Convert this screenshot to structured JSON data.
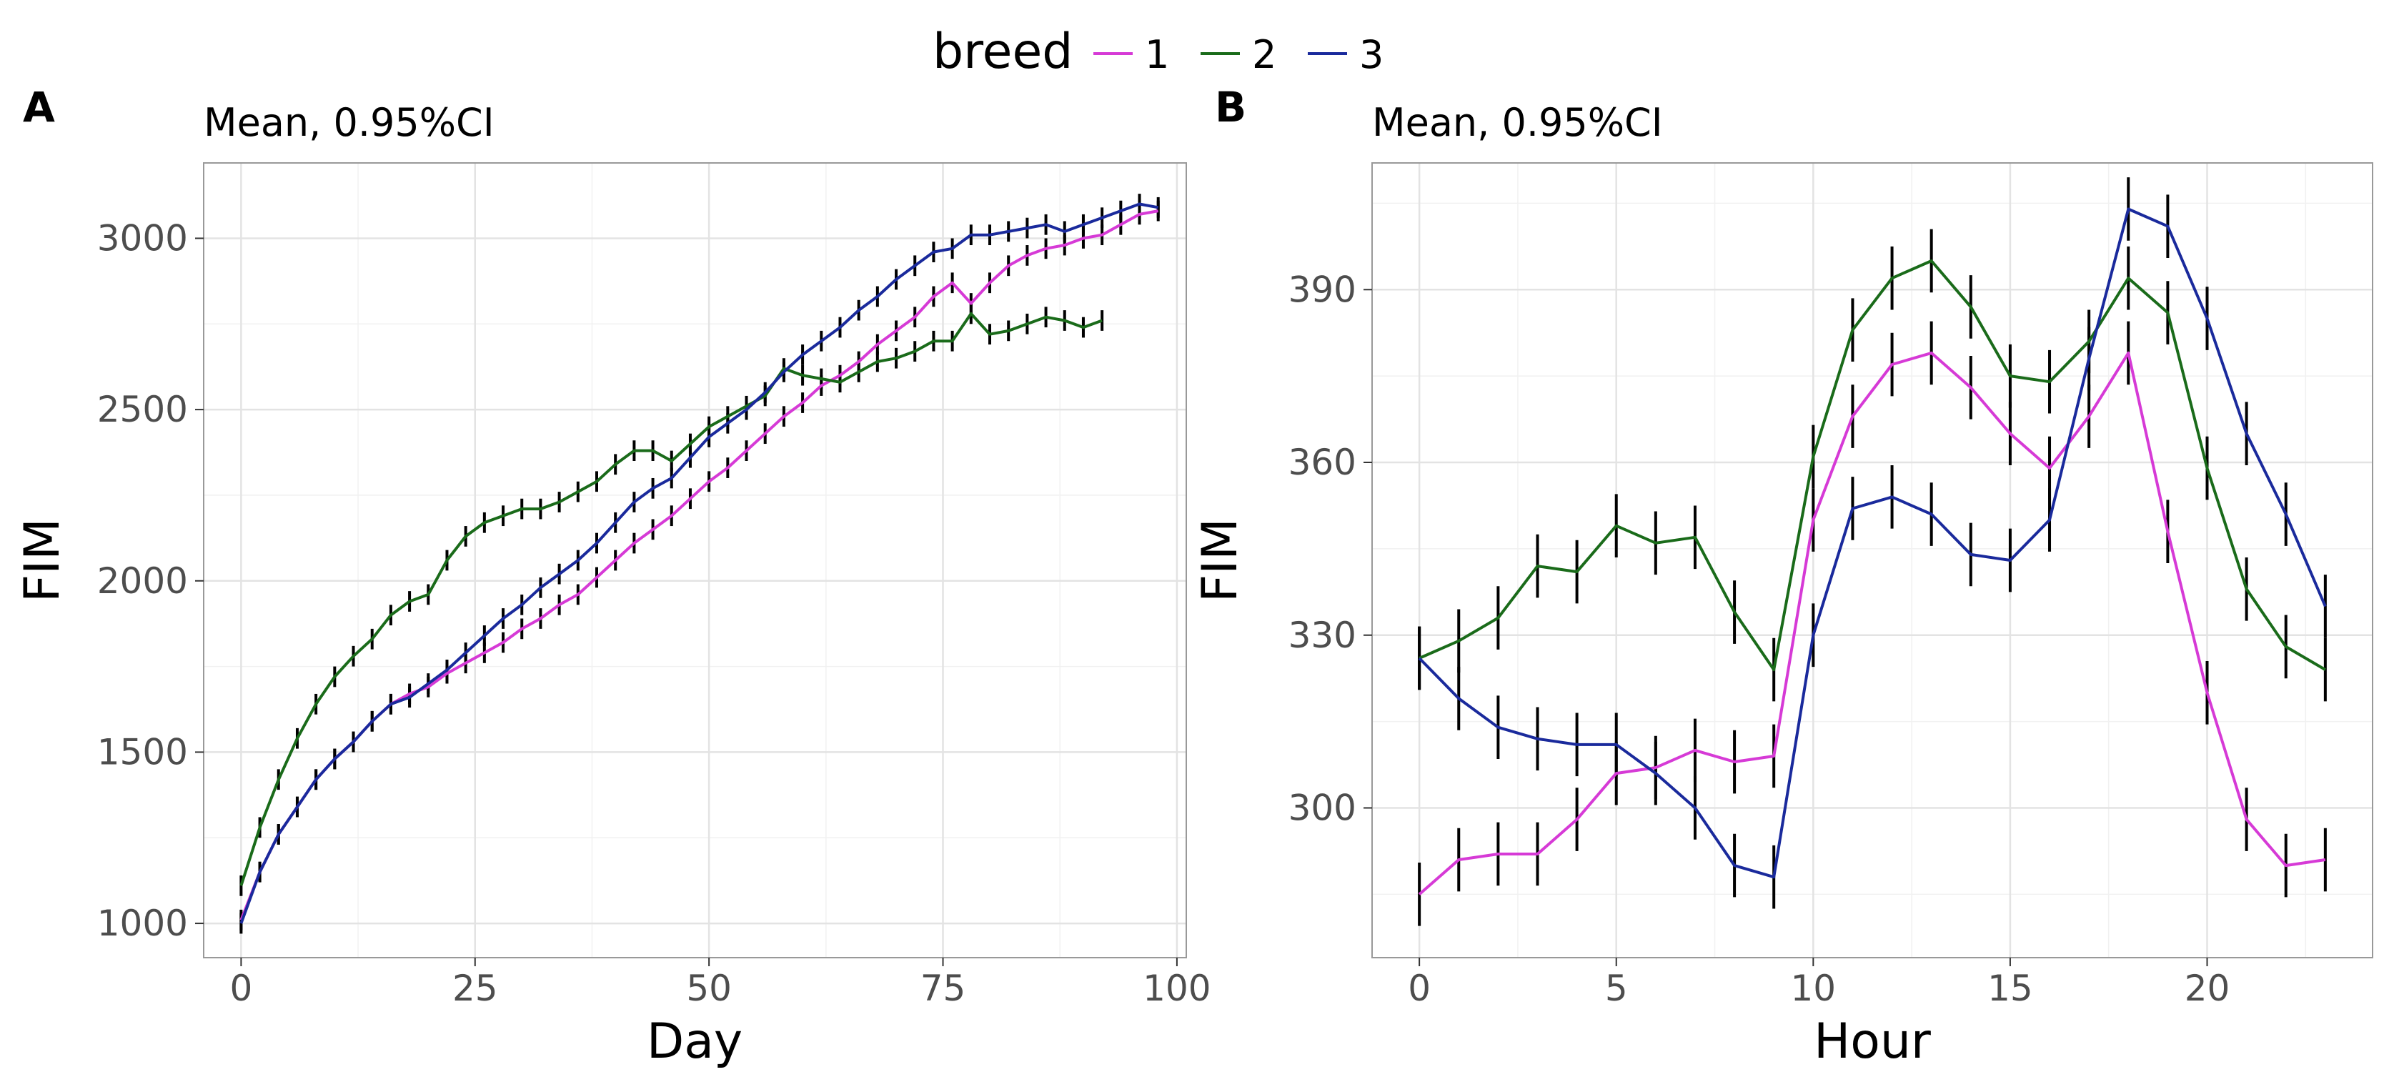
{
  "legend": {
    "title": "breed",
    "entries": [
      {
        "label": "1",
        "color": "#d63ad6"
      },
      {
        "label": "2",
        "color": "#1a6b1a"
      },
      {
        "label": "3",
        "color": "#1a2a9c"
      }
    ]
  },
  "chart_data": [
    {
      "panel": "A",
      "type": "line",
      "subtitle": "Mean, 0.95%CI",
      "xlabel": "Day",
      "ylabel": "FIM",
      "xlim": [
        -4,
        101
      ],
      "ylim": [
        900,
        3220
      ],
      "xticks": [
        0,
        25,
        50,
        75,
        100
      ],
      "yticks": [
        1000,
        1500,
        2000,
        2500,
        3000
      ],
      "ci_halfwidth": 30,
      "series": [
        {
          "name": "1",
          "x": [
            0,
            2,
            4,
            6,
            8,
            10,
            12,
            14,
            16,
            18,
            20,
            22,
            24,
            26,
            28,
            30,
            32,
            34,
            36,
            38,
            40,
            42,
            44,
            46,
            48,
            50,
            52,
            54,
            56,
            58,
            60,
            62,
            64,
            66,
            68,
            70,
            72,
            74,
            76,
            78,
            80,
            82,
            84,
            86,
            88,
            90,
            92,
            94,
            96,
            98
          ],
          "y": [
            1010,
            1150,
            1260,
            1340,
            1420,
            1480,
            1530,
            1590,
            1640,
            1670,
            1690,
            1730,
            1760,
            1790,
            1820,
            1860,
            1890,
            1930,
            1960,
            2010,
            2060,
            2110,
            2150,
            2190,
            2240,
            2290,
            2330,
            2380,
            2430,
            2480,
            2520,
            2570,
            2600,
            2640,
            2690,
            2730,
            2770,
            2830,
            2870,
            2810,
            2870,
            2920,
            2950,
            2970,
            2980,
            3000,
            3010,
            3040,
            3070,
            3080
          ]
        },
        {
          "name": "2",
          "x": [
            0,
            2,
            4,
            6,
            8,
            10,
            12,
            14,
            16,
            18,
            20,
            22,
            24,
            26,
            28,
            30,
            32,
            34,
            36,
            38,
            40,
            42,
            44,
            46,
            48,
            50,
            52,
            54,
            56,
            58,
            60,
            62,
            64,
            66,
            68,
            70,
            72,
            74,
            76,
            78,
            80,
            82,
            84,
            86,
            88,
            90,
            92
          ],
          "y": [
            1110,
            1280,
            1420,
            1540,
            1640,
            1720,
            1780,
            1830,
            1900,
            1940,
            1960,
            2060,
            2130,
            2170,
            2190,
            2210,
            2210,
            2230,
            2260,
            2290,
            2340,
            2380,
            2380,
            2350,
            2400,
            2450,
            2480,
            2510,
            2540,
            2620,
            2600,
            2590,
            2580,
            2610,
            2640,
            2650,
            2670,
            2700,
            2700,
            2780,
            2720,
            2730,
            2750,
            2770,
            2760,
            2740,
            2760
          ]
        },
        {
          "name": "3",
          "x": [
            0,
            2,
            4,
            6,
            8,
            10,
            12,
            14,
            16,
            18,
            20,
            22,
            24,
            26,
            28,
            30,
            32,
            34,
            36,
            38,
            40,
            42,
            44,
            46,
            48,
            50,
            52,
            54,
            56,
            58,
            60,
            62,
            64,
            66,
            68,
            70,
            72,
            74,
            76,
            78,
            80,
            82,
            84,
            86,
            88,
            90,
            92,
            94,
            96,
            98
          ],
          "y": [
            1000,
            1150,
            1260,
            1340,
            1420,
            1480,
            1530,
            1590,
            1640,
            1660,
            1700,
            1740,
            1790,
            1840,
            1890,
            1930,
            1980,
            2020,
            2060,
            2110,
            2170,
            2230,
            2270,
            2300,
            2360,
            2420,
            2460,
            2500,
            2550,
            2610,
            2660,
            2700,
            2740,
            2790,
            2830,
            2880,
            2920,
            2960,
            2970,
            3010,
            3010,
            3020,
            3030,
            3040,
            3020,
            3040,
            3060,
            3080,
            3100,
            3090
          ]
        }
      ]
    },
    {
      "panel": "B",
      "type": "line",
      "subtitle": "Mean, 0.95%CI",
      "xlabel": "Hour",
      "ylabel": "FIM",
      "xlim": [
        -1.2,
        24.2
      ],
      "ylim": [
        274,
        412
      ],
      "xticks": [
        0,
        5,
        10,
        15,
        20
      ],
      "yticks": [
        300,
        330,
        360,
        390
      ],
      "ci_halfwidth": 5.5,
      "series": [
        {
          "name": "1",
          "x": [
            0,
            1,
            2,
            3,
            4,
            5,
            6,
            7,
            8,
            9,
            10,
            11,
            12,
            13,
            14,
            15,
            16,
            17,
            18,
            19,
            20,
            21,
            22,
            23
          ],
          "y": [
            285,
            291,
            292,
            292,
            298,
            306,
            307,
            310,
            308,
            309,
            350,
            368,
            377,
            379,
            373,
            365,
            359,
            368,
            379,
            348,
            320,
            298,
            290,
            291
          ]
        },
        {
          "name": "2",
          "x": [
            0,
            1,
            2,
            3,
            4,
            5,
            6,
            7,
            8,
            9,
            10,
            11,
            12,
            13,
            14,
            15,
            16,
            17,
            18,
            19,
            20,
            21,
            22,
            23
          ],
          "y": [
            326,
            329,
            333,
            342,
            341,
            349,
            346,
            347,
            334,
            324,
            361,
            383,
            392,
            395,
            387,
            375,
            374,
            381,
            392,
            386,
            359,
            338,
            328,
            324
          ]
        },
        {
          "name": "3",
          "x": [
            0,
            1,
            2,
            3,
            4,
            5,
            6,
            7,
            8,
            9,
            10,
            11,
            12,
            13,
            14,
            15,
            16,
            17,
            18,
            19,
            20,
            21,
            22,
            23
          ],
          "y": [
            326,
            319,
            314,
            312,
            311,
            311,
            306,
            300,
            290,
            288,
            330,
            352,
            354,
            351,
            344,
            343,
            350,
            378,
            404,
            401,
            385,
            365,
            351,
            335
          ]
        }
      ]
    }
  ]
}
